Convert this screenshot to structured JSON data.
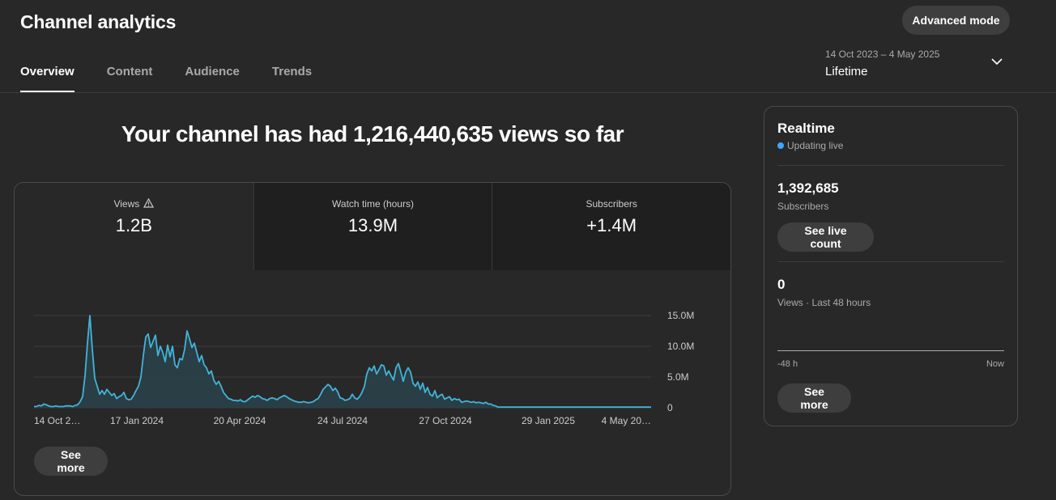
{
  "header": {
    "title": "Channel analytics",
    "advanced_button": "Advanced mode",
    "tabs": [
      {
        "label": "Overview",
        "active": true
      },
      {
        "label": "Content",
        "active": false
      },
      {
        "label": "Audience",
        "active": false
      },
      {
        "label": "Trends",
        "active": false
      }
    ],
    "date_range": "14 Oct 2023 – 4 May 2025",
    "period": "Lifetime"
  },
  "main": {
    "headline": "Your channel has had 1,216,440,635 views so far",
    "metrics": [
      {
        "label": "Views",
        "value": "1.2B",
        "warning_icon": "warning-icon"
      },
      {
        "label": "Watch time (hours)",
        "value": "13.9M"
      },
      {
        "label": "Subscribers",
        "value": "+1.4M"
      }
    ],
    "see_more": "See more"
  },
  "chart_data": {
    "type": "area",
    "series": [
      {
        "values": [
          0.2,
          0.2,
          0.4,
          0.3,
          0.6,
          0.5,
          0.3,
          0.2,
          0.2,
          0.3,
          0.2,
          0.2,
          0.2,
          0.3,
          0.3,
          0.3,
          0.2,
          0.4,
          0.5,
          1.0,
          1.8,
          5.2,
          10.5,
          15.0,
          9.5,
          4.8,
          3.5,
          2.2,
          2.8,
          2.2,
          3.0,
          2.5,
          2.0,
          2.3,
          1.5,
          1.8,
          2.0,
          2.5,
          1.5,
          1.3,
          1.4,
          2.0,
          2.8,
          3.5,
          5.0,
          8.5,
          11.5,
          12.0,
          9.8,
          10.8,
          11.8,
          8.5,
          10.0,
          9.0,
          7.5,
          10.2,
          8.3,
          10.0,
          7.0,
          6.5,
          8.0,
          7.8,
          9.5,
          12.5,
          11.2,
          9.8,
          10.5,
          9.0,
          7.5,
          8.5,
          7.0,
          6.5,
          5.5,
          6.0,
          4.5,
          3.8,
          4.3,
          3.5,
          2.5,
          2.0,
          1.5,
          1.4,
          1.2,
          1.2,
          1.1,
          1.3,
          1.0,
          1.0,
          1.3,
          1.6,
          1.9,
          1.7,
          2.0,
          1.8,
          1.5,
          1.4,
          1.2,
          1.5,
          1.6,
          1.5,
          1.3,
          1.6,
          1.8,
          2.0,
          1.8,
          1.5,
          1.3,
          1.1,
          1.0,
          0.9,
          0.9,
          1.0,
          0.9,
          0.8,
          0.9,
          1.0,
          1.3,
          1.5,
          2.2,
          3.0,
          3.4,
          3.8,
          3.5,
          2.8,
          3.2,
          2.6,
          1.6,
          1.5,
          1.2,
          1.3,
          1.5,
          2.2,
          1.6,
          1.4,
          1.8,
          2.5,
          3.5,
          5.5,
          6.5,
          6.0,
          6.8,
          5.5,
          6.2,
          7.0,
          6.8,
          5.3,
          6.0,
          5.2,
          4.5,
          6.5,
          7.2,
          5.8,
          4.3,
          5.8,
          6.5,
          5.8,
          4.0,
          3.5,
          4.2,
          3.0,
          4.0,
          2.5,
          3.3,
          2.2,
          1.9,
          2.8,
          1.6,
          2.0,
          2.2,
          1.4,
          1.6,
          1.8,
          1.2,
          1.5,
          1.3,
          1.4,
          0.9,
          1.0,
          1.1,
          1.0,
          0.9,
          1.0,
          0.8,
          0.9,
          0.8,
          0.7,
          0.9,
          0.6,
          0.6,
          0.4,
          0.3,
          0.1,
          0.1,
          0.1,
          0.1,
          0.1,
          0.1,
          0.1,
          0.1,
          0.1,
          0.1,
          0.1,
          0.1,
          0.1,
          0.1,
          0.1,
          0.1,
          0.1,
          0.1,
          0.1,
          0.1,
          0.1,
          0.1,
          0.1,
          0.1,
          0.1,
          0.1,
          0.1,
          0.1,
          0.1,
          0.1,
          0.1,
          0.1,
          0.1,
          0.1,
          0.1,
          0.1,
          0.1,
          0.1,
          0.1,
          0.1,
          0.1,
          0.1,
          0.1,
          0.1,
          0.1,
          0.1,
          0.1,
          0.1,
          0.1,
          0.1,
          0.1,
          0.1,
          0.1,
          0.1,
          0.1,
          0.1,
          0.1,
          0.1,
          0.1,
          0.1,
          0.1,
          0.1,
          0.1,
          0.1
        ]
      }
    ],
    "x_tick_labels": [
      "14 Oct 2…",
      "17 Jan 2024",
      "20 Apr 2024",
      "24 Jul 2024",
      "27 Oct 2024",
      "29 Jan 2025",
      "4 May 20…"
    ],
    "y_tick_labels": [
      "0",
      "5.0M",
      "10.0M",
      "15.0M"
    ],
    "y_unit": "M",
    "ylim": [
      0,
      15
    ],
    "grid": true,
    "y_axis_side": "right",
    "line_color": "#41b4d9",
    "fill_color": "#2a4048"
  },
  "realtime": {
    "title": "Realtime",
    "status": "Updating live",
    "subscribers_value": "1,392,685",
    "subscribers_label": "Subscribers",
    "live_count_button": "See live count",
    "views_value": "0",
    "views_label": "Views · Last 48 hours",
    "axis_start": "-48 h",
    "axis_end": "Now",
    "see_more": "See more"
  }
}
